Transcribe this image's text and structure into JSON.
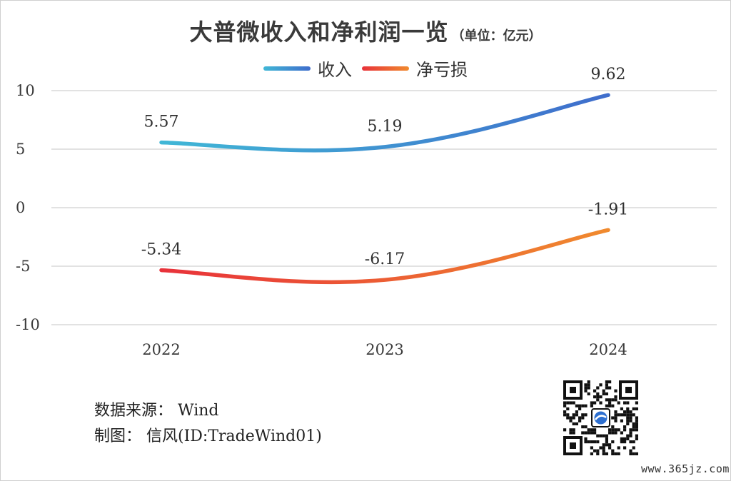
{
  "chart_data": {
    "type": "line",
    "title": "大普微收入和净利润一览",
    "unit_note": "（单位：亿元）",
    "categories": [
      "2022",
      "2023",
      "2024"
    ],
    "series": [
      {
        "name": "收入",
        "values": [
          5.57,
          5.19,
          9.62
        ],
        "labels": [
          "5.57",
          "5.19",
          "9.62"
        ],
        "color_start": "#40b7d6",
        "color_end": "#3f6dcc"
      },
      {
        "name": "净亏损",
        "values": [
          -5.34,
          -6.17,
          -1.91
        ],
        "labels": [
          "-5.34",
          "-6.17",
          "-1.91"
        ],
        "color_start": "#e8323a",
        "color_end": "#f08a2e"
      }
    ],
    "ylim": [
      -10,
      10
    ],
    "yticks": [
      10,
      5,
      0,
      -5,
      -10
    ],
    "ytick_labels": [
      "10",
      "5",
      "0",
      "-5",
      "-10"
    ],
    "grid": true,
    "legend_position": "top-center",
    "smooth": true
  },
  "footer": {
    "source": "数据来源：  Wind",
    "author": "制图：  信风(ID:TradeWind01)"
  },
  "watermark": "www.365jz.com",
  "icons": {
    "qr_code": "qr-code-icon"
  }
}
